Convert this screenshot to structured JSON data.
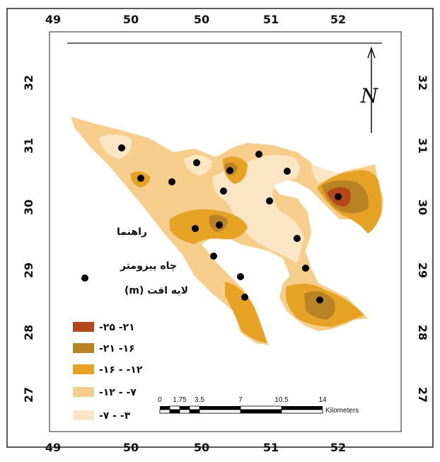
{
  "axes": {
    "top_ticks": [
      "49",
      "50",
      "50",
      "51",
      "52"
    ],
    "bottom_ticks": [
      "49",
      "50",
      "50",
      "51",
      "52"
    ],
    "left_ticks": [
      "32",
      "31",
      "30",
      "29",
      "28",
      "27"
    ],
    "right_ticks": [
      "32",
      "31",
      "30",
      "29",
      "28",
      "27"
    ]
  },
  "legend": {
    "heading": "راهنما",
    "piezometer_label": "چاه پیزومتر",
    "layer_label": "لایه افت (m)",
    "classes": [
      {
        "label": "-۲۵ -۲۱",
        "color": "#b5471c"
      },
      {
        "label": "-۲۱ -۱۶",
        "color": "#b98325"
      },
      {
        "label": "-۱۶ - -۱۲",
        "color": "#e6a224"
      },
      {
        "label": "-۱۲ - -۷",
        "color": "#f6cd8a"
      },
      {
        "label": "-۷ - -۳",
        "color": "#fae6c4"
      }
    ]
  },
  "scale_bar": {
    "labels": [
      "0",
      "1.75",
      "3.5",
      "7",
      "10.5",
      "14"
    ],
    "unit": "Kilometers"
  },
  "north_arrow": {
    "symbol": "N"
  }
}
